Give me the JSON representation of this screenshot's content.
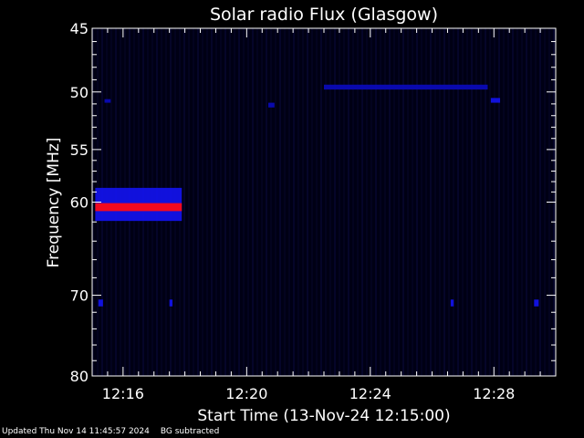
{
  "chart_data": {
    "type": "heatmap",
    "title": "Solar radio Flux (Glasgow)",
    "xlabel": "Start Time (13-Nov-24 12:15:00)",
    "ylabel": "Frequency [MHz]",
    "x_unit": "minutes after 12:15:00",
    "xlim": [
      0,
      15
    ],
    "ylim": [
      45,
      80
    ],
    "y_reversed": true,
    "y_scale": "log",
    "xticks": [
      {
        "value": 1,
        "label": "12:16"
      },
      {
        "value": 5,
        "label": "12:20"
      },
      {
        "value": 9,
        "label": "12:24"
      },
      {
        "value": 13,
        "label": "12:28"
      }
    ],
    "yticks": [
      {
        "value": 45,
        "label": "45"
      },
      {
        "value": 50,
        "label": "50"
      },
      {
        "value": 55,
        "label": "55"
      },
      {
        "value": 60,
        "label": "60"
      },
      {
        "value": 70,
        "label": "70"
      },
      {
        "value": 80,
        "label": "80"
      }
    ],
    "background_color": "#000014",
    "features": [
      {
        "t_start": 0.1,
        "t_end": 2.9,
        "f_low": 58.6,
        "f_high": 61.9,
        "intensity": 0.45
      },
      {
        "t_start": 0.1,
        "t_end": 2.9,
        "f_low": 60.1,
        "f_high": 60.9,
        "intensity": 1.0
      },
      {
        "t_start": 7.5,
        "t_end": 12.8,
        "f_low": 49.4,
        "f_high": 49.8,
        "intensity": 0.35
      },
      {
        "t_start": 12.9,
        "t_end": 13.2,
        "f_low": 50.5,
        "f_high": 50.9,
        "intensity": 0.4
      },
      {
        "t_start": 0.4,
        "t_end": 0.6,
        "f_low": 50.6,
        "f_high": 50.9,
        "intensity": 0.35
      },
      {
        "t_start": 5.7,
        "t_end": 5.9,
        "f_low": 50.9,
        "f_high": 51.3,
        "intensity": 0.35
      },
      {
        "t_start": 0.2,
        "t_end": 0.35,
        "f_low": 70.5,
        "f_high": 71.3,
        "intensity": 0.5
      },
      {
        "t_start": 2.5,
        "t_end": 2.6,
        "f_low": 70.5,
        "f_high": 71.3,
        "intensity": 0.5
      },
      {
        "t_start": 11.6,
        "t_end": 11.7,
        "f_low": 70.5,
        "f_high": 71.3,
        "intensity": 0.5
      },
      {
        "t_start": 14.3,
        "t_end": 14.45,
        "f_low": 70.5,
        "f_high": 71.3,
        "intensity": 0.5
      }
    ]
  },
  "footer": {
    "updated": "Updated Thu Nov 14 11:45:57 2024",
    "note": "BG subtracted"
  }
}
